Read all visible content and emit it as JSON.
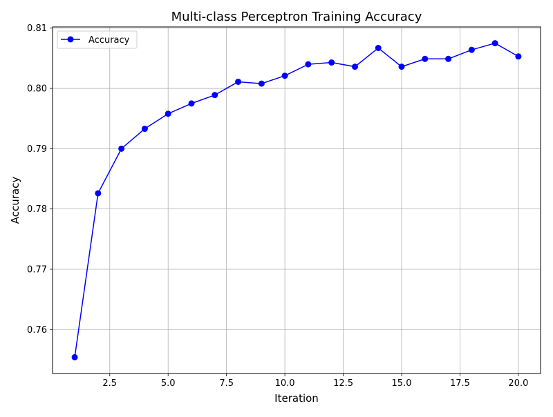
{
  "chart_data": {
    "type": "line",
    "title": "Multi-class Perceptron Training Accuracy",
    "xlabel": "Iteration",
    "ylabel": "Accuracy",
    "xlim": [
      0.05,
      20.95
    ],
    "ylim": [
      0.7527,
      0.8102
    ],
    "grid": true,
    "legend_position": "upper-left",
    "x_ticks": [
      2.5,
      5.0,
      7.5,
      10.0,
      12.5,
      15.0,
      17.5,
      20.0
    ],
    "x_tick_labels": [
      "2.5",
      "5.0",
      "7.5",
      "10.0",
      "12.5",
      "15.0",
      "17.5",
      "20.0"
    ],
    "y_ticks": [
      0.76,
      0.77,
      0.78,
      0.79,
      0.8,
      0.81
    ],
    "y_tick_labels": [
      "0.76",
      "0.77",
      "0.78",
      "0.79",
      "0.80",
      "0.81"
    ],
    "series": [
      {
        "name": "Accuracy",
        "color": "#0000ff",
        "marker": "circle",
        "x": [
          1,
          2,
          3,
          4,
          5,
          6,
          7,
          8,
          9,
          10,
          11,
          12,
          13,
          14,
          15,
          16,
          17,
          18,
          19,
          20
        ],
        "y": [
          0.7554,
          0.7826,
          0.79,
          0.7933,
          0.7958,
          0.7975,
          0.7989,
          0.8011,
          0.8008,
          0.8021,
          0.804,
          0.8043,
          0.8036,
          0.8067,
          0.8036,
          0.8049,
          0.8049,
          0.8064,
          0.8075,
          0.8053
        ]
      }
    ]
  }
}
